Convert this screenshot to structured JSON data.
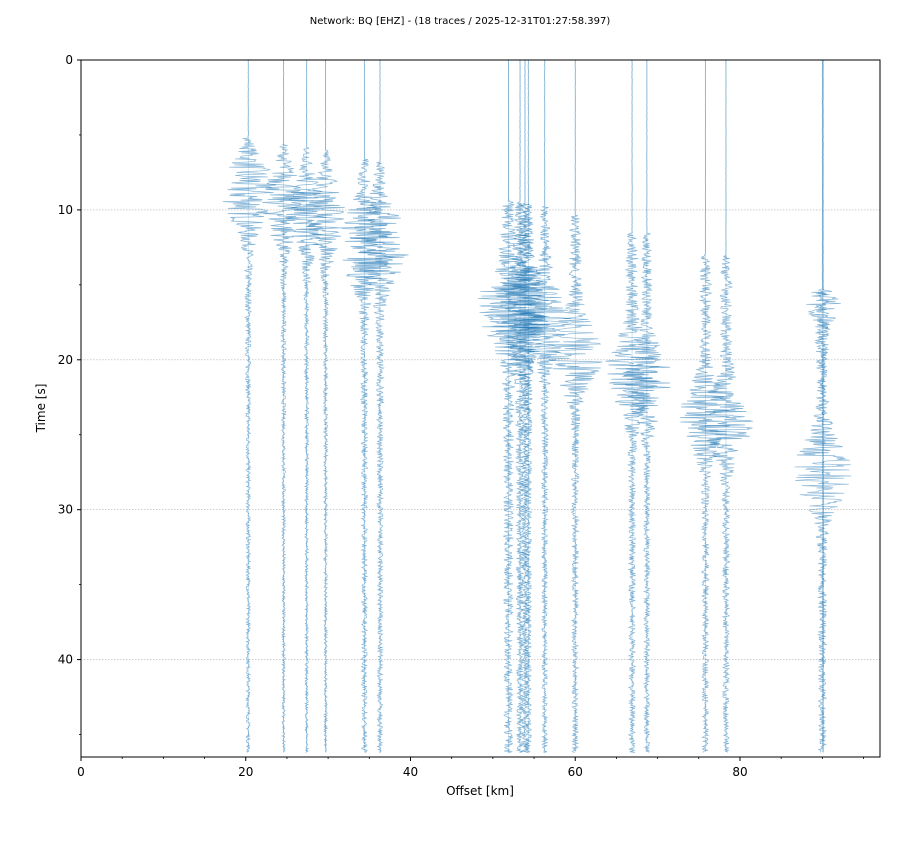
{
  "chart_data": {
    "type": "seismic-record-section",
    "title": "Network: BQ [EHZ] - (18 traces / 2025-12-31T01:27:58.397)",
    "xlabel": "Offset [km]",
    "ylabel": "Time [s]",
    "xlim": [
      0,
      97
    ],
    "ylim": [
      46.5,
      0
    ],
    "x_ticks": [
      0,
      20,
      40,
      60,
      80
    ],
    "y_ticks": [
      0,
      10,
      20,
      30,
      40
    ],
    "grid": "horizontal",
    "trace_color": "#1f77b4",
    "series": [
      {
        "offset": 20.3,
        "arrival": 5.2,
        "peak": 8.8,
        "amp": 3.2,
        "noise": 0.25
      },
      {
        "offset": 24.6,
        "arrival": 5.6,
        "peak": 9.6,
        "amp": 2.6,
        "noise": 0.2
      },
      {
        "offset": 27.4,
        "arrival": 5.8,
        "peak": 10.3,
        "amp": 2.4,
        "noise": 0.2
      },
      {
        "offset": 29.7,
        "arrival": 6.0,
        "peak": 10.5,
        "amp": 2.5,
        "noise": 0.2
      },
      {
        "offset": 34.4,
        "arrival": 6.6,
        "peak": 12.5,
        "amp": 3.5,
        "noise": 0.35
      },
      {
        "offset": 36.3,
        "arrival": 6.8,
        "peak": 12.4,
        "amp": 3.5,
        "noise": 0.35
      },
      {
        "offset": 51.9,
        "arrival": 9.3,
        "peak": 16.8,
        "amp": 3.8,
        "noise": 0.6
      },
      {
        "offset": 53.3,
        "arrival": 9.5,
        "peak": 17.0,
        "amp": 3.6,
        "noise": 0.45
      },
      {
        "offset": 53.9,
        "arrival": 9.6,
        "peak": 17.2,
        "amp": 3.0,
        "noise": 0.45
      },
      {
        "offset": 54.3,
        "arrival": 9.7,
        "peak": 16.5,
        "amp": 2.4,
        "noise": 0.4
      },
      {
        "offset": 56.3,
        "arrival": 9.8,
        "peak": 17.5,
        "amp": 3.0,
        "noise": 0.35
      },
      {
        "offset": 60.0,
        "arrival": 10.4,
        "peak": 19.5,
        "amp": 3.4,
        "noise": 0.4
      },
      {
        "offset": 66.9,
        "arrival": 11.5,
        "peak": 21.0,
        "amp": 3.4,
        "noise": 0.4
      },
      {
        "offset": 68.7,
        "arrival": 11.6,
        "peak": 21.5,
        "amp": 3.0,
        "noise": 0.35
      },
      {
        "offset": 75.8,
        "arrival": 13.0,
        "peak": 23.8,
        "amp": 3.0,
        "noise": 0.4
      },
      {
        "offset": 78.3,
        "arrival": 13.1,
        "peak": 24.0,
        "amp": 3.2,
        "noise": 0.4
      },
      {
        "offset": 90.0,
        "arrival": 15.3,
        "peak": 27.5,
        "amp": 3.4,
        "noise": 0.5
      },
      {
        "offset": 90.1,
        "arrival": 15.4,
        "peak": 15.6,
        "amp": 2.2,
        "noise": 0.0
      }
    ]
  }
}
